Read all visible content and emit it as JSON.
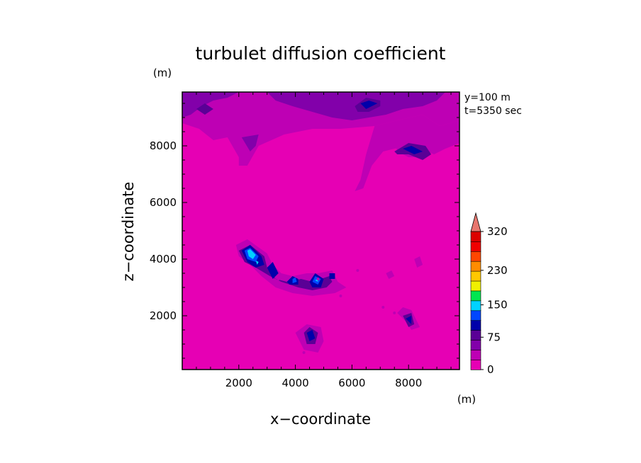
{
  "chart_data": {
    "type": "heatmap",
    "title": "turbulet diffusion coefficient",
    "xlabel": "x−coordinate",
    "ylabel": "z−coordinate",
    "x_unit": "(m)",
    "y_unit": "(m)",
    "xlim": [
      0,
      9800
    ],
    "ylim": [
      100,
      9900
    ],
    "x_ticks": [
      2000,
      4000,
      6000,
      8000
    ],
    "y_ticks": [
      2000,
      4000,
      6000,
      8000
    ],
    "annotation_y": "y=100 m",
    "annotation_t": "t=5350 sec",
    "colorbar": {
      "min": 0,
      "max": 350,
      "levels": [
        0,
        25,
        50,
        75,
        100,
        125,
        150,
        175,
        200,
        225,
        250,
        275,
        300,
        325,
        350
      ],
      "tick_labels": [
        "0",
        "75",
        "150",
        "230",
        "320"
      ],
      "tick_values": [
        0,
        75,
        150,
        230,
        320
      ],
      "colors": [
        "#e600b4",
        "#be00b4",
        "#8200aa",
        "#5a0096",
        "#0000aa",
        "#0046ff",
        "#00d2ff",
        "#00e650",
        "#f0f000",
        "#ffc800",
        "#ff8c00",
        "#ff4600",
        "#f00000",
        "#dc0000"
      ],
      "extend_color": "#e8766e"
    },
    "background_value": 12,
    "regions": [
      {
        "level": 1,
        "points": [
          [
            0,
            9900
          ],
          [
            9800,
            9900
          ],
          [
            9800,
            8900
          ],
          [
            9100,
            8700
          ],
          [
            8500,
            9100
          ],
          [
            7600,
            8900
          ],
          [
            6800,
            8700
          ],
          [
            5600,
            8600
          ],
          [
            4600,
            8600
          ],
          [
            3600,
            8400
          ],
          [
            2700,
            8000
          ],
          [
            2100,
            8300
          ],
          [
            1600,
            8300
          ],
          [
            1100,
            8200
          ],
          [
            600,
            8600
          ],
          [
            0,
            8800
          ]
        ]
      },
      {
        "level": 1,
        "points": [
          [
            1600,
            8300
          ],
          [
            2000,
            7600
          ],
          [
            2000,
            7300
          ],
          [
            2300,
            7300
          ],
          [
            2700,
            8000
          ],
          [
            2400,
            8300
          ]
        ]
      },
      {
        "level": 1,
        "points": [
          [
            6800,
            8700
          ],
          [
            6500,
            7700
          ],
          [
            6300,
            6800
          ],
          [
            6100,
            6400
          ],
          [
            6400,
            6500
          ],
          [
            6700,
            7300
          ],
          [
            7100,
            7800
          ],
          [
            7500,
            7900
          ],
          [
            8200,
            8000
          ],
          [
            8900,
            7700
          ],
          [
            9300,
            7900
          ],
          [
            9800,
            8100
          ],
          [
            9800,
            8900
          ],
          [
            9100,
            8700
          ],
          [
            8500,
            9100
          ],
          [
            7600,
            8900
          ]
        ]
      },
      {
        "level": 2,
        "points": [
          [
            3000,
            9900
          ],
          [
            9300,
            9900
          ],
          [
            9000,
            9600
          ],
          [
            8500,
            9400
          ],
          [
            7800,
            9300
          ],
          [
            7200,
            9100
          ],
          [
            6600,
            9000
          ],
          [
            6000,
            8900
          ],
          [
            5300,
            9000
          ],
          [
            4600,
            9200
          ],
          [
            3900,
            9400
          ],
          [
            3300,
            9600
          ]
        ]
      },
      {
        "level": 2,
        "points": [
          [
            0,
            9900
          ],
          [
            2000,
            9900
          ],
          [
            1600,
            9700
          ],
          [
            1100,
            9600
          ],
          [
            700,
            9400
          ],
          [
            300,
            9100
          ],
          [
            0,
            9000
          ]
        ]
      },
      {
        "level": 2,
        "points": [
          [
            2100,
            8300
          ],
          [
            2400,
            7800
          ],
          [
            2600,
            8000
          ],
          [
            2700,
            8400
          ]
        ]
      },
      {
        "level": 1,
        "points": [
          [
            7500,
            8300
          ],
          [
            7600,
            7800
          ],
          [
            8000,
            7600
          ],
          [
            8600,
            7600
          ],
          [
            8800,
            7900
          ],
          [
            8400,
            8300
          ],
          [
            7900,
            8400
          ]
        ]
      },
      {
        "level": 1,
        "points": [
          [
            1900,
            4500
          ],
          [
            2300,
            4700
          ],
          [
            3000,
            4200
          ],
          [
            3200,
            3800
          ],
          [
            3500,
            3500
          ],
          [
            3900,
            3400
          ],
          [
            4400,
            3500
          ],
          [
            4800,
            3500
          ],
          [
            5300,
            3600
          ],
          [
            5500,
            3200
          ],
          [
            5800,
            3000
          ],
          [
            5400,
            2800
          ],
          [
            4600,
            2700
          ],
          [
            3900,
            2800
          ],
          [
            3300,
            3000
          ],
          [
            2800,
            3400
          ],
          [
            2400,
            3800
          ],
          [
            2000,
            4100
          ]
        ]
      },
      {
        "level": 1,
        "points": [
          [
            4000,
            1400
          ],
          [
            4400,
            1700
          ],
          [
            4900,
            1600
          ],
          [
            5000,
            1100
          ],
          [
            4800,
            700
          ],
          [
            4300,
            800
          ]
        ]
      },
      {
        "level": 1,
        "points": [
          [
            7600,
            2100
          ],
          [
            7800,
            2300
          ],
          [
            8100,
            2200
          ],
          [
            8400,
            1600
          ],
          [
            8100,
            1500
          ],
          [
            7900,
            1800
          ]
        ]
      },
      {
        "level": 1,
        "points": [
          [
            8200,
            4000
          ],
          [
            8400,
            4100
          ],
          [
            8500,
            3800
          ],
          [
            8300,
            3700
          ]
        ]
      },
      {
        "level": 1,
        "points": [
          [
            7200,
            3500
          ],
          [
            7400,
            3600
          ],
          [
            7500,
            3400
          ],
          [
            7300,
            3300
          ]
        ]
      },
      {
        "level": 3,
        "points": [
          [
            2000,
            4300
          ],
          [
            2400,
            4500
          ],
          [
            2900,
            4100
          ],
          [
            3000,
            3700
          ],
          [
            3300,
            3300
          ],
          [
            3700,
            3200
          ],
          [
            4200,
            3300
          ],
          [
            4600,
            3200
          ],
          [
            4900,
            3300
          ],
          [
            5200,
            3400
          ],
          [
            5300,
            3200
          ],
          [
            5100,
            3000
          ],
          [
            4600,
            2900
          ],
          [
            4100,
            3000
          ],
          [
            3500,
            3200
          ],
          [
            3100,
            3400
          ],
          [
            2600,
            3700
          ],
          [
            2200,
            3900
          ]
        ]
      },
      {
        "level": 3,
        "points": [
          [
            4300,
            1400
          ],
          [
            4500,
            1600
          ],
          [
            4800,
            1400
          ],
          [
            4700,
            1000
          ],
          [
            4400,
            1000
          ]
        ]
      },
      {
        "level": 3,
        "points": [
          [
            7800,
            2000
          ],
          [
            8100,
            2100
          ],
          [
            8200,
            1700
          ],
          [
            8000,
            1600
          ]
        ]
      },
      {
        "level": 3,
        "points": [
          [
            500,
            9300
          ],
          [
            800,
            9500
          ],
          [
            1100,
            9300
          ],
          [
            800,
            9100
          ]
        ]
      },
      {
        "level": 3,
        "points": [
          [
            6100,
            9400
          ],
          [
            6500,
            9700
          ],
          [
            7000,
            9600
          ],
          [
            7000,
            9400
          ],
          [
            6600,
            9200
          ],
          [
            6200,
            9200
          ]
        ]
      },
      {
        "level": 3,
        "points": [
          [
            7500,
            7800
          ],
          [
            8000,
            8100
          ],
          [
            8600,
            8000
          ],
          [
            8800,
            7700
          ],
          [
            8500,
            7500
          ],
          [
            8000,
            7700
          ],
          [
            7600,
            7700
          ]
        ]
      },
      {
        "level": 4,
        "points": [
          [
            2100,
            4300
          ],
          [
            2400,
            4500
          ],
          [
            2800,
            4100
          ],
          [
            2900,
            3800
          ],
          [
            2600,
            3700
          ],
          [
            2300,
            3900
          ]
        ]
      },
      {
        "level": 4,
        "points": [
          [
            3000,
            3700
          ],
          [
            3200,
            3900
          ],
          [
            3400,
            3500
          ],
          [
            3200,
            3300
          ]
        ]
      },
      {
        "level": 4,
        "points": [
          [
            3700,
            3200
          ],
          [
            3900,
            3400
          ],
          [
            4100,
            3300
          ],
          [
            4100,
            3100
          ],
          [
            3800,
            3100
          ]
        ]
      },
      {
        "level": 4,
        "points": [
          [
            4500,
            3200
          ],
          [
            4700,
            3500
          ],
          [
            5000,
            3300
          ],
          [
            4900,
            3000
          ],
          [
            4600,
            3000
          ]
        ]
      },
      {
        "level": 4,
        "points": [
          [
            5200,
            3500
          ],
          [
            5400,
            3500
          ],
          [
            5400,
            3300
          ],
          [
            5200,
            3300
          ]
        ]
      },
      {
        "level": 4,
        "points": [
          [
            4400,
            1400
          ],
          [
            4600,
            1500
          ],
          [
            4700,
            1200
          ],
          [
            4500,
            1100
          ]
        ]
      },
      {
        "level": 4,
        "points": [
          [
            6300,
            9500
          ],
          [
            6600,
            9600
          ],
          [
            6900,
            9500
          ],
          [
            6500,
            9300
          ]
        ]
      },
      {
        "level": 4,
        "points": [
          [
            7800,
            7900
          ],
          [
            8100,
            8000
          ],
          [
            8500,
            7800
          ],
          [
            8200,
            7700
          ]
        ]
      },
      {
        "level": 4,
        "points": [
          [
            7900,
            1900
          ],
          [
            8100,
            2000
          ],
          [
            8100,
            1700
          ]
        ]
      },
      {
        "level": 5,
        "points": [
          [
            2200,
            4300
          ],
          [
            2400,
            4400
          ],
          [
            2700,
            4100
          ],
          [
            2600,
            3900
          ],
          [
            2300,
            4000
          ]
        ]
      },
      {
        "level": 5,
        "points": [
          [
            3900,
            3300
          ],
          [
            4000,
            3350
          ],
          [
            4050,
            3200
          ],
          [
            3900,
            3150
          ]
        ]
      },
      {
        "level": 5,
        "points": [
          [
            4600,
            3200
          ],
          [
            4700,
            3400
          ],
          [
            4900,
            3300
          ],
          [
            4800,
            3100
          ]
        ]
      },
      {
        "level": 6,
        "points": [
          [
            2300,
            4300
          ],
          [
            2400,
            4350
          ],
          [
            2600,
            4150
          ],
          [
            2500,
            4000
          ],
          [
            2350,
            4100
          ]
        ]
      },
      {
        "level": 6,
        "points": [
          [
            2600,
            3950
          ],
          [
            2700,
            3900
          ],
          [
            2650,
            3800
          ]
        ]
      },
      {
        "level": 6,
        "points": [
          [
            4700,
            3250
          ],
          [
            4780,
            3300
          ],
          [
            4800,
            3200
          ]
        ]
      }
    ],
    "dots": [
      [
        4300,
        700
      ],
      [
        5600,
        2700
      ],
      [
        6200,
        3600
      ],
      [
        7100,
        2300
      ],
      [
        7500,
        2100
      ],
      [
        4800,
        3300
      ],
      [
        3400,
        3300
      ]
    ]
  }
}
